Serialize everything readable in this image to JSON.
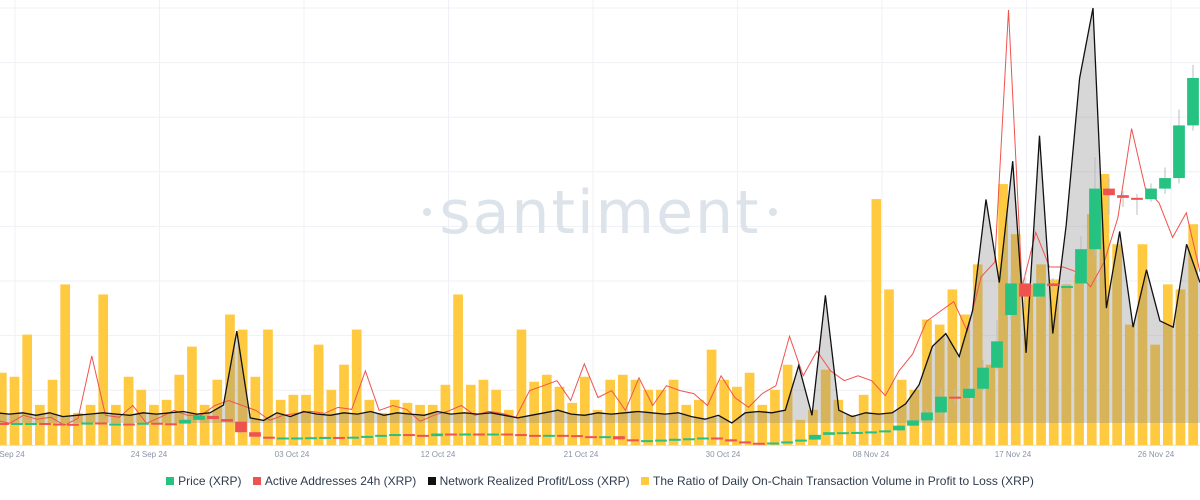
{
  "chart_data": {
    "type": "bar+line+candlestick",
    "watermark": "santiment",
    "x_tick_labels": [
      "Sep 24",
      "24 Sep 24",
      "03 Oct 24",
      "12 Oct 24",
      "21 Oct 24",
      "30 Oct 24",
      "08 Nov 24",
      "17 Nov 24",
      "26 Nov 24"
    ],
    "grid": true,
    "legend_placement": "bottom",
    "colors": {
      "bullish": "#26c281",
      "bearish": "#ef5350",
      "ratio_bar": "#ffc940",
      "active_addresses": "#ef5350",
      "realized_pl": "#111111"
    },
    "series": [
      {
        "name": "Price (XRP)",
        "type": "candlestick",
        "values": [
          [
            0.59,
            0.585,
            0.592,
            0.583
          ],
          [
            0.585,
            0.59,
            0.593,
            0.583
          ],
          [
            0.59,
            0.59,
            0.592,
            0.588
          ],
          [
            0.59,
            0.588,
            0.591,
            0.587
          ],
          [
            0.588,
            0.587,
            0.589,
            0.586
          ],
          [
            0.587,
            0.584,
            0.588,
            0.583
          ],
          [
            0.584,
            0.592,
            0.593,
            0.583
          ],
          [
            0.592,
            0.588,
            0.594,
            0.587
          ],
          [
            0.588,
            0.588,
            0.59,
            0.587
          ],
          [
            0.588,
            0.586,
            0.589,
            0.585
          ],
          [
            0.586,
            0.591,
            0.592,
            0.585
          ],
          [
            0.591,
            0.589,
            0.593,
            0.588
          ],
          [
            0.589,
            0.588,
            0.59,
            0.587
          ],
          [
            0.588,
            0.602,
            0.604,
            0.587
          ],
          [
            0.602,
            0.617,
            0.62,
            0.6
          ],
          [
            0.617,
            0.605,
            0.618,
            0.6
          ],
          [
            0.605,
            0.595,
            0.607,
            0.59
          ],
          [
            0.595,
            0.555,
            0.597,
            0.55
          ],
          [
            0.555,
            0.538,
            0.558,
            0.535
          ],
          [
            0.538,
            0.532,
            0.54,
            0.53
          ],
          [
            0.532,
            0.535,
            0.537,
            0.531
          ],
          [
            0.535,
            0.535,
            0.537,
            0.533
          ],
          [
            0.535,
            0.536,
            0.538,
            0.534
          ],
          [
            0.536,
            0.537,
            0.539,
            0.535
          ],
          [
            0.537,
            0.535,
            0.538,
            0.533
          ],
          [
            0.535,
            0.538,
            0.54,
            0.534
          ],
          [
            0.538,
            0.541,
            0.543,
            0.537
          ],
          [
            0.541,
            0.545,
            0.546,
            0.54
          ],
          [
            0.545,
            0.548,
            0.55,
            0.544
          ],
          [
            0.548,
            0.545,
            0.549,
            0.543
          ],
          [
            0.545,
            0.54,
            0.546,
            0.538
          ],
          [
            0.54,
            0.55,
            0.552,
            0.539
          ],
          [
            0.55,
            0.548,
            0.551,
            0.546
          ],
          [
            0.548,
            0.55,
            0.552,
            0.547
          ],
          [
            0.55,
            0.549,
            0.551,
            0.547
          ],
          [
            0.549,
            0.55,
            0.552,
            0.548
          ],
          [
            0.55,
            0.548,
            0.551,
            0.547
          ],
          [
            0.548,
            0.545,
            0.549,
            0.544
          ],
          [
            0.545,
            0.543,
            0.546,
            0.541
          ],
          [
            0.543,
            0.545,
            0.547,
            0.542
          ],
          [
            0.545,
            0.544,
            0.546,
            0.543
          ],
          [
            0.544,
            0.54,
            0.545,
            0.539
          ],
          [
            0.54,
            0.538,
            0.541,
            0.537
          ],
          [
            0.538,
            0.54,
            0.541,
            0.537
          ],
          [
            0.54,
            0.528,
            0.541,
            0.525
          ],
          [
            0.528,
            0.522,
            0.53,
            0.52
          ],
          [
            0.522,
            0.525,
            0.527,
            0.521
          ],
          [
            0.525,
            0.527,
            0.529,
            0.524
          ],
          [
            0.527,
            0.53,
            0.532,
            0.526
          ],
          [
            0.53,
            0.532,
            0.534,
            0.529
          ],
          [
            0.532,
            0.535,
            0.537,
            0.531
          ],
          [
            0.535,
            0.528,
            0.536,
            0.525
          ],
          [
            0.528,
            0.52,
            0.53,
            0.518
          ],
          [
            0.52,
            0.515,
            0.522,
            0.514
          ],
          [
            0.515,
            0.514,
            0.516,
            0.513
          ],
          [
            0.514,
            0.516,
            0.518,
            0.513
          ],
          [
            0.516,
            0.52,
            0.522,
            0.515
          ],
          [
            0.52,
            0.527,
            0.529,
            0.519
          ],
          [
            0.527,
            0.545,
            0.547,
            0.526
          ],
          [
            0.545,
            0.555,
            0.558,
            0.543
          ],
          [
            0.555,
            0.555,
            0.557,
            0.553
          ],
          [
            0.555,
            0.556,
            0.558,
            0.554
          ],
          [
            0.556,
            0.558,
            0.56,
            0.555
          ],
          [
            0.558,
            0.562,
            0.564,
            0.557
          ],
          [
            0.562,
            0.58,
            0.582,
            0.56
          ],
          [
            0.58,
            0.6,
            0.605,
            0.578
          ],
          [
            0.6,
            0.63,
            0.645,
            0.598
          ],
          [
            0.63,
            0.69,
            0.72,
            0.62
          ],
          [
            0.69,
            0.685,
            0.72,
            0.66
          ],
          [
            0.685,
            0.72,
            0.73,
            0.68
          ],
          [
            0.72,
            0.8,
            0.83,
            0.715
          ],
          [
            0.8,
            0.9,
            0.98,
            0.79
          ],
          [
            1.0,
            1.12,
            1.15,
            0.98
          ],
          [
            1.12,
            1.07,
            1.15,
            1.02
          ],
          [
            1.07,
            1.12,
            1.14,
            1.06
          ],
          [
            1.12,
            1.11,
            1.14,
            1.09
          ],
          [
            1.11,
            1.11,
            1.12,
            1.1
          ],
          [
            1.12,
            1.25,
            1.3,
            1.12
          ],
          [
            1.25,
            1.48,
            1.6,
            1.22
          ],
          [
            1.48,
            1.455,
            1.52,
            1.38
          ],
          [
            1.455,
            1.445,
            1.47,
            1.41
          ],
          [
            1.445,
            1.44,
            1.46,
            1.38
          ],
          [
            1.44,
            1.48,
            1.5,
            1.43
          ],
          [
            1.48,
            1.52,
            1.56,
            1.46
          ],
          [
            1.52,
            1.72,
            1.78,
            1.5
          ],
          [
            1.72,
            1.9,
            1.95,
            1.7
          ]
        ]
      },
      {
        "name": "Active Addresses 24h (XRP)",
        "type": "line",
        "values": [
          25,
          22,
          30,
          26,
          28,
          20,
          27,
          90,
          30,
          28,
          40,
          22,
          28,
          35,
          30,
          30,
          40,
          45,
          40,
          35,
          25,
          30,
          32,
          34,
          32,
          38,
          36,
          75,
          35,
          40,
          36,
          24,
          30,
          34,
          40,
          30,
          34,
          32,
          28,
          55,
          60,
          65,
          45,
          82,
          48,
          55,
          35,
          68,
          40,
          60,
          55,
          52,
          40,
          70,
          48,
          38,
          52,
          60,
          110,
          70,
          95,
          75,
          65,
          70,
          65,
          50,
          75,
          92,
          125,
          135,
          145,
          115,
          170,
          185,
          440,
          160,
          215,
          180,
          180,
          175,
          160,
          185,
          230,
          320,
          260,
          245,
          210,
          235,
          175
        ]
      },
      {
        "name": "Network Realized Profit/Loss (XRP)",
        "type": "line",
        "values": [
          8,
          7,
          8,
          6,
          8,
          5,
          6,
          7,
          8,
          7,
          6,
          8,
          7,
          8,
          9,
          7,
          8,
          14,
          72,
          4,
          2,
          8,
          5,
          9,
          7,
          6,
          8,
          7,
          9,
          6,
          8,
          7,
          6,
          9,
          7,
          8,
          7,
          8,
          6,
          4,
          6,
          8,
          10,
          7,
          6,
          8,
          7,
          8,
          9,
          8,
          7,
          8,
          5,
          3,
          6,
          0,
          8,
          9,
          8,
          10,
          45,
          6,
          100,
          10,
          5,
          8,
          7,
          8,
          15,
          30,
          60,
          70,
          52,
          88,
          175,
          110,
          205,
          55,
          225,
          70,
          155,
          270,
          325,
          90,
          150,
          75,
          120,
          80,
          75,
          140,
          110
        ]
      },
      {
        "name": "The Ratio of Daily On-Chain Transaction Volume in Profit to Loss (XRP)",
        "type": "bar",
        "values": [
          72,
          68,
          110,
          40,
          65,
          160,
          32,
          40,
          150,
          40,
          68,
          55,
          40,
          45,
          70,
          98,
          40,
          65,
          130,
          115,
          68,
          115,
          45,
          50,
          50,
          100,
          55,
          80,
          115,
          45,
          32,
          45,
          42,
          40,
          40,
          60,
          150,
          60,
          65,
          55,
          35,
          115,
          63,
          70,
          58,
          42,
          68,
          35,
          65,
          70,
          65,
          55,
          55,
          65,
          40,
          45,
          95,
          65,
          58,
          72,
          40,
          55,
          80,
          25,
          35,
          75,
          45,
          30,
          50,
          245,
          155,
          65,
          55,
          125,
          120,
          155,
          130,
          180,
          80,
          260,
          210,
          160,
          180,
          165,
          160,
          170,
          230,
          270,
          200,
          120,
          200,
          100,
          160,
          155,
          220
        ]
      }
    ]
  }
}
